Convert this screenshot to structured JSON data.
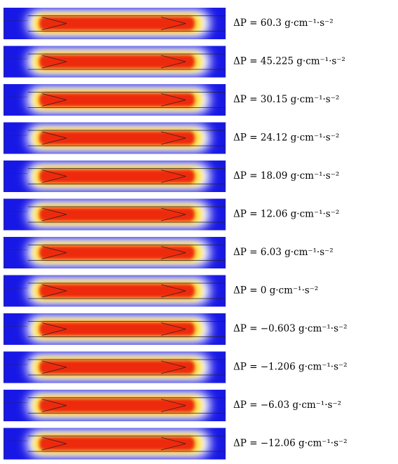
{
  "panels": [
    {
      "label": "ΔP = 60.3 g·cm⁻¹·s⁻²"
    },
    {
      "label": "ΔP = 45.225 g·cm⁻¹·s⁻²"
    },
    {
      "label": "ΔP = 30.15 g·cm⁻¹·s⁻²"
    },
    {
      "label": "ΔP = 24.12 g·cm⁻¹·s⁻²"
    },
    {
      "label": "ΔP = 18.09 g·cm⁻¹·s⁻²"
    },
    {
      "label": "ΔP = 12.06 g·cm⁻¹·s⁻²"
    },
    {
      "label": "ΔP = 6.03 g·cm⁻¹·s⁻²"
    },
    {
      "label": "ΔP = 0 g·cm⁻¹·s⁻²"
    },
    {
      "label": "ΔP = −0.603 g·cm⁻¹·s⁻²"
    },
    {
      "label": "ΔP = −1.206 g·cm⁻¹·s⁻²"
    },
    {
      "label": "ΔP = −6.03 g·cm⁻¹·s⁻²"
    },
    {
      "label": "ΔP = −12.06 g·cm⁻¹·s⁻²"
    }
  ]
}
